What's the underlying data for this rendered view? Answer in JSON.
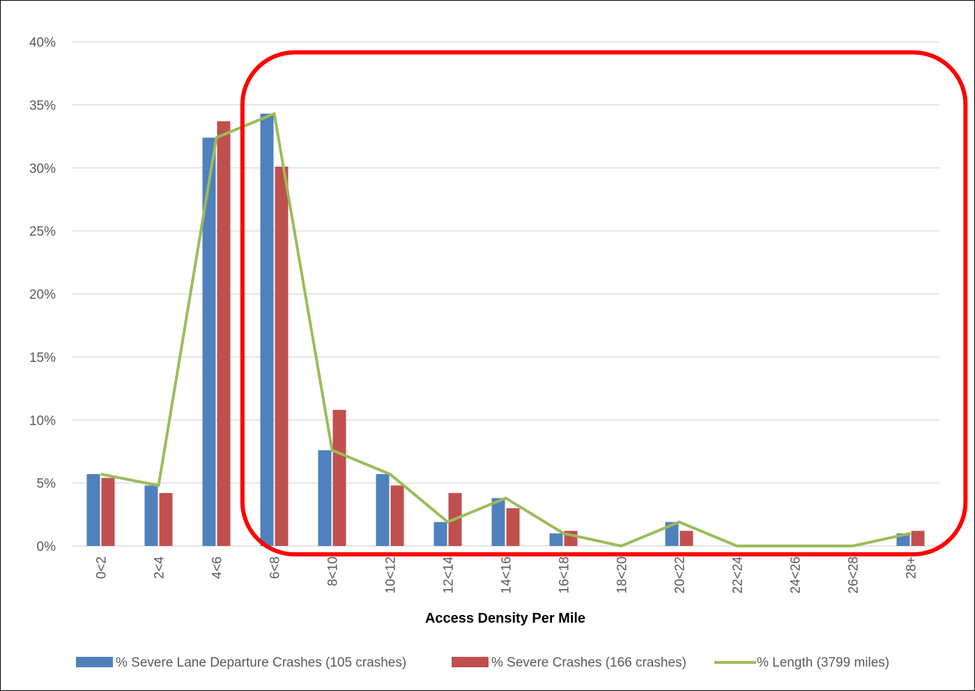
{
  "chart_data": {
    "type": "bar",
    "xlabel": "Access Density Per Mile",
    "ylabel": "",
    "ylim": [
      0,
      40
    ],
    "y_tick_values": [
      0,
      5,
      10,
      15,
      20,
      25,
      30,
      35,
      40
    ],
    "y_tick_labels": [
      "0%",
      "5%",
      "10%",
      "15%",
      "20%",
      "25%",
      "30%",
      "35%",
      "40%"
    ],
    "grid": true,
    "legend_position": "bottom",
    "categories": [
      "0<2",
      "2<4",
      "4<6",
      "6<8",
      "8<10",
      "10<12",
      "12<14",
      "14<16",
      "16<18",
      "18<20",
      "20<22",
      "22<24",
      "24<26",
      "26<28",
      "28+"
    ],
    "series": [
      {
        "name": "% Severe Lane Departure Crashes (105 crashes)",
        "type": "bar",
        "color": "#4F81BD",
        "values": [
          5.7,
          4.8,
          32.4,
          34.3,
          7.6,
          5.7,
          1.9,
          3.8,
          1.0,
          0,
          1.9,
          0,
          0,
          0,
          1.0
        ]
      },
      {
        "name": "% Severe Crashes (166 crashes)",
        "type": "bar",
        "color": "#C0504D",
        "values": [
          5.4,
          4.2,
          33.7,
          30.1,
          10.8,
          4.8,
          4.2,
          3.0,
          1.2,
          0,
          1.2,
          0,
          0,
          0,
          1.2
        ]
      },
      {
        "name": "% Length (3799 miles)",
        "type": "line",
        "color": "#9BBB59",
        "values": [
          5.7,
          4.8,
          32.4,
          34.3,
          7.6,
          5.7,
          1.9,
          3.8,
          1.0,
          0,
          1.9,
          0,
          0,
          0,
          1.0
        ]
      }
    ],
    "annotations": [
      {
        "type": "highlight-rounded-rectangle",
        "color": "#FF0000",
        "from_category": "6<8",
        "to_category": "28+",
        "y_range": [
          0,
          39
        ]
      }
    ]
  }
}
